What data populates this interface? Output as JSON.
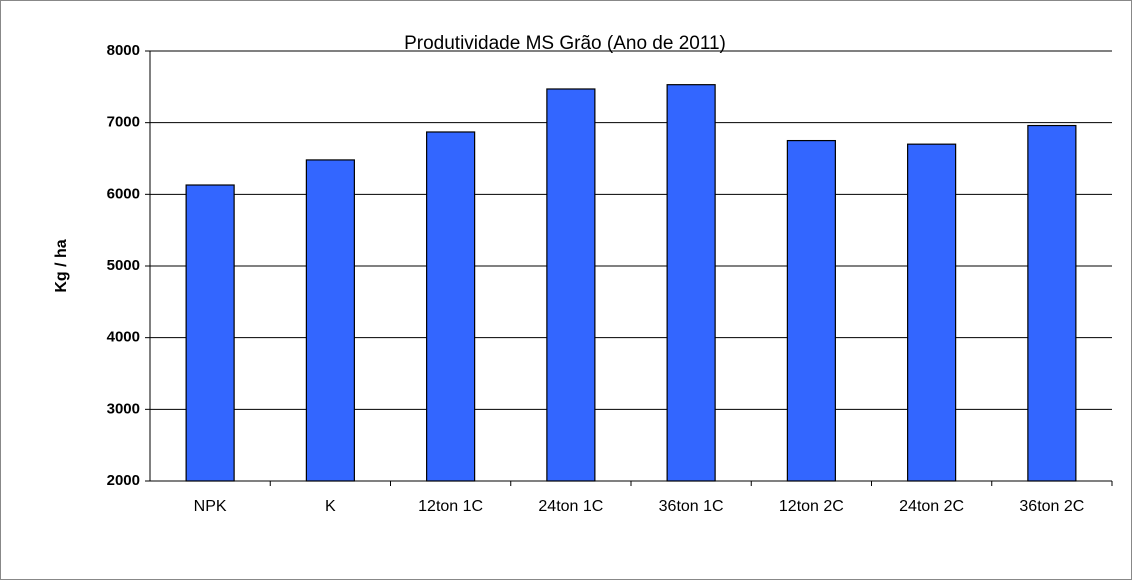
{
  "chart_data": {
    "type": "bar",
    "title": "Produtividade MS Grão (Ano de 2011)",
    "y_label": "Kg / ha",
    "categories": [
      "NPK",
      "K",
      "12ton 1C",
      "24ton 1C",
      "36ton 1C",
      "12ton 2C",
      "24ton 2C",
      "36ton 2C"
    ],
    "values": [
      6130,
      6480,
      6870,
      7470,
      7530,
      6750,
      6700,
      6960
    ],
    "color": "#3366ff",
    "ylim": [
      2000,
      8000
    ],
    "yticks": [
      2000,
      3000,
      4000,
      5000,
      6000,
      7000,
      8000
    ],
    "grid": true
  }
}
